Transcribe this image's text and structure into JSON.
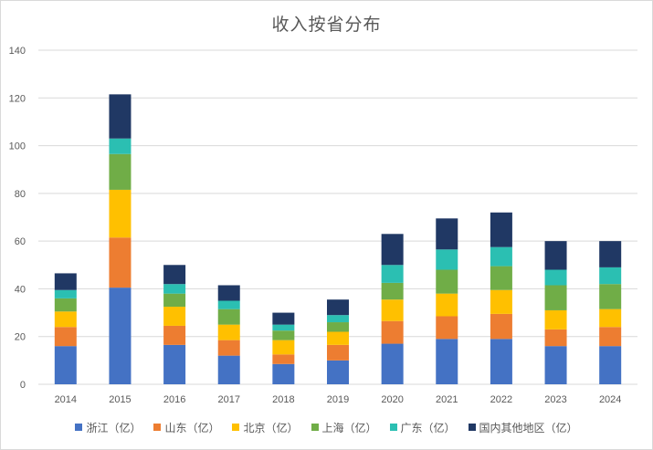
{
  "chart_data": {
    "type": "bar",
    "stacked": true,
    "title": "收入按省分布",
    "xlabel": "",
    "ylabel": "",
    "categories": [
      "2014",
      "2015",
      "2016",
      "2017",
      "2018",
      "2019",
      "2020",
      "2021",
      "2022",
      "2023",
      "2024"
    ],
    "ylim": [
      0,
      140
    ],
    "yticks": [
      0,
      20,
      40,
      60,
      80,
      100,
      120,
      140
    ],
    "grid": true,
    "legend_position": "bottom",
    "series": [
      {
        "name": "浙江（亿）",
        "color": "#4472C4",
        "values": [
          16,
          40.5,
          16.5,
          12,
          8.5,
          10,
          17,
          19,
          19,
          16,
          16
        ]
      },
      {
        "name": "山东（亿）",
        "color": "#ED7D31",
        "values": [
          8,
          21,
          8,
          6.5,
          4,
          6.5,
          9.5,
          9.5,
          10.5,
          7,
          8
        ]
      },
      {
        "name": "北京（亿）",
        "color": "#FFC000",
        "values": [
          6.5,
          20,
          8,
          6.5,
          6,
          5.5,
          9,
          9.5,
          10,
          8,
          7.5
        ]
      },
      {
        "name": "上海（亿）",
        "color": "#70AD47",
        "values": [
          5.5,
          15,
          5.5,
          6.5,
          4,
          4,
          7,
          10,
          10,
          10.5,
          10.5
        ]
      },
      {
        "name": "广东（亿）",
        "color": "#2BBFB2",
        "values": [
          3.5,
          6.5,
          4,
          3.5,
          2.5,
          3,
          7.5,
          8.5,
          8,
          6.5,
          7
        ]
      },
      {
        "name": "国内其他地区（亿）",
        "color": "#203864",
        "values": [
          7,
          18.5,
          8,
          6.5,
          5,
          6.5,
          13,
          13,
          14.5,
          12,
          11
        ]
      }
    ]
  }
}
